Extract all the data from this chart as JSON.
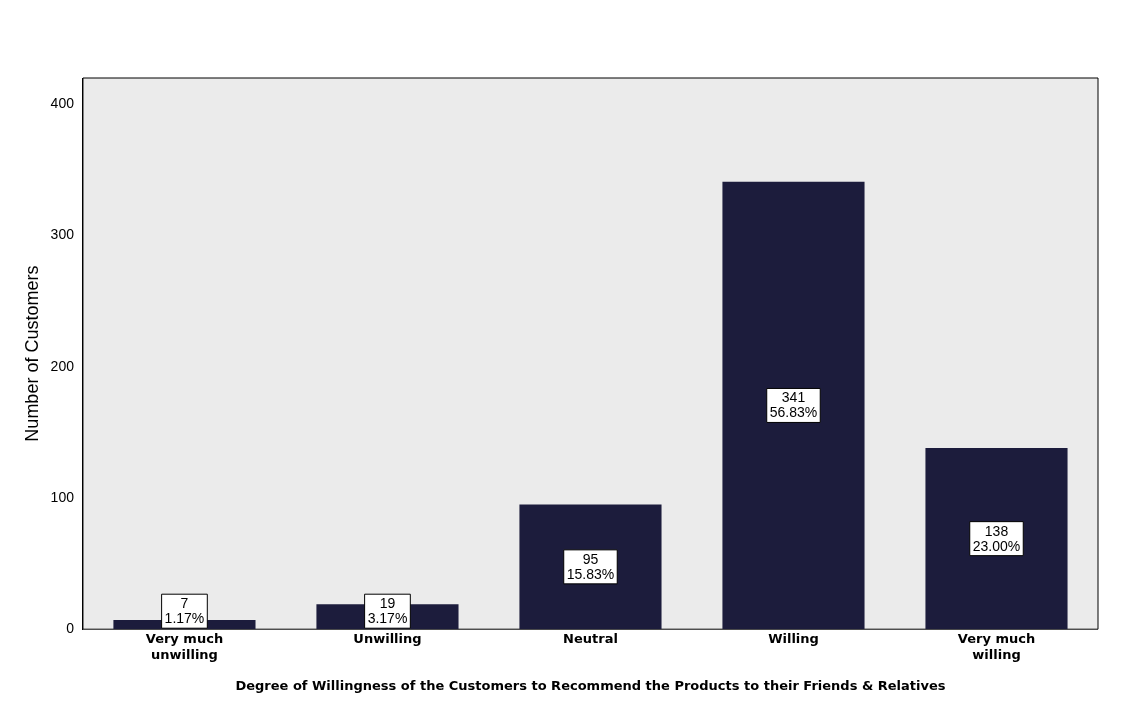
{
  "chart_data": {
    "type": "bar",
    "xlabel": "Degree of Willingness of the Customers to Recommend the Products to their Friends & Relatives",
    "ylabel": "Number of Customers",
    "categories": [
      "Very much unwilling",
      "Unwilling",
      "Neutral",
      "Willing",
      "Very much willing"
    ],
    "values": [
      7,
      19,
      95,
      341,
      138
    ],
    "color": "#1c1c3c",
    "value_labels": [
      "7\n1.17%",
      "19\n3.17%",
      "95\n15.83%",
      "341\n56.83%",
      "138\n23.00%"
    ],
    "ylim": [
      0,
      420
    ],
    "yticks": [
      0,
      100,
      200,
      300,
      400
    ],
    "grid": false,
    "legend": false
  }
}
